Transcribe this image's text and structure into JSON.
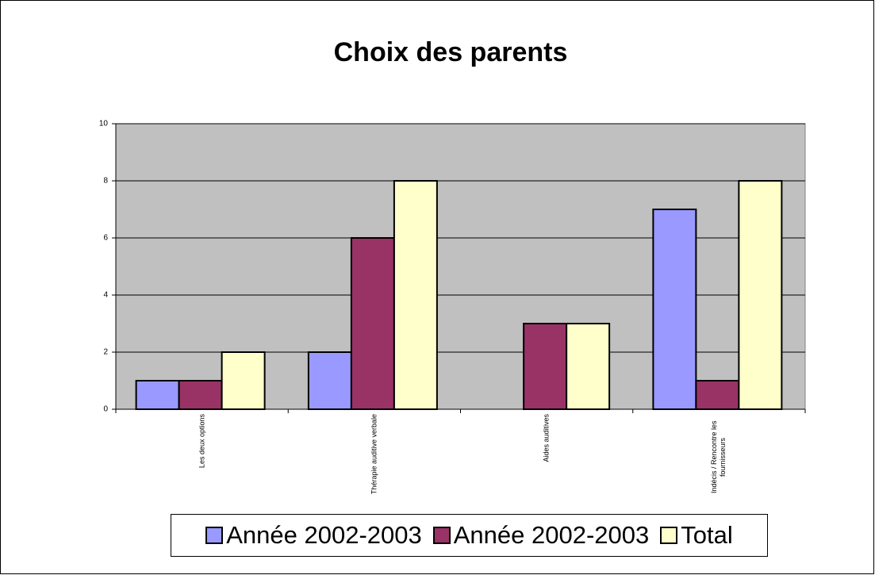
{
  "chart_data": {
    "type": "bar",
    "title": "Choix des parents",
    "categories": [
      "Les deux options",
      "Thérapie auditive verbale",
      "Aides auditives",
      "Indécis / Rencontre les fournisseurs"
    ],
    "series": [
      {
        "name": "Année 2002-2003",
        "color": "#9999ff",
        "values": [
          1,
          2,
          null,
          7
        ]
      },
      {
        "name": "Année 2002-2003",
        "color": "#993366",
        "values": [
          1,
          6,
          3,
          1
        ]
      },
      {
        "name": "Total",
        "color": "#ffffcc",
        "values": [
          2,
          8,
          3,
          8
        ]
      }
    ],
    "ylim": [
      0,
      10
    ],
    "yticks": [
      0,
      2,
      4,
      6,
      8,
      10
    ],
    "grid": true,
    "legend": "bottom"
  }
}
